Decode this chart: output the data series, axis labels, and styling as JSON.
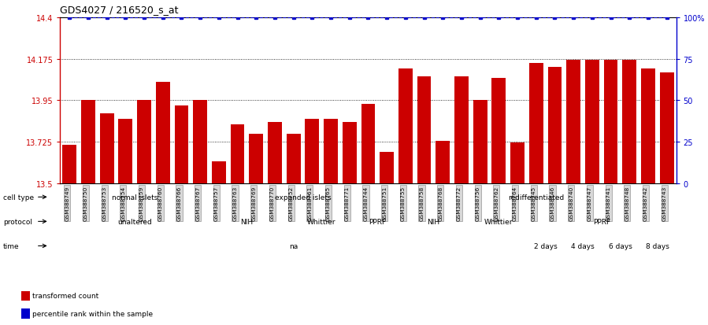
{
  "title": "GDS4027 / 216520_s_at",
  "samples": [
    "GSM388749",
    "GSM388750",
    "GSM388753",
    "GSM388754",
    "GSM388759",
    "GSM388760",
    "GSM388766",
    "GSM388767",
    "GSM388757",
    "GSM388763",
    "GSM388769",
    "GSM388770",
    "GSM388752",
    "GSM388761",
    "GSM388765",
    "GSM388771",
    "GSM388744",
    "GSM388751",
    "GSM388755",
    "GSM388758",
    "GSM388768",
    "GSM388772",
    "GSM388756",
    "GSM388762",
    "GSM388764",
    "GSM388745",
    "GSM388746",
    "GSM388740",
    "GSM388747",
    "GSM388741",
    "GSM388748",
    "GSM388742",
    "GSM388743"
  ],
  "bar_values": [
    13.71,
    13.95,
    13.88,
    13.85,
    13.95,
    14.05,
    13.92,
    13.95,
    13.62,
    13.82,
    13.77,
    13.83,
    13.77,
    13.85,
    13.85,
    13.83,
    13.93,
    13.67,
    14.12,
    14.08,
    13.73,
    14.08,
    13.95,
    14.07,
    13.72,
    14.15,
    14.13,
    14.17,
    14.17,
    14.17,
    14.17,
    14.12,
    14.1
  ],
  "ymin": 13.5,
  "ymax": 14.4,
  "yticks": [
    13.5,
    13.725,
    13.95,
    14.175,
    14.4
  ],
  "ytick_labels": [
    "13.5",
    "13.725",
    "13.95",
    "14.175",
    "14.4"
  ],
  "right_yticks": [
    0,
    25,
    50,
    75,
    100
  ],
  "right_ytick_labels": [
    "0",
    "25",
    "50",
    "75",
    "100%"
  ],
  "bar_color": "#cc0000",
  "percentile_color": "#0000cc",
  "background_color": "#ffffff",
  "cell_type_groups": [
    {
      "label": "normal islets",
      "start": 0,
      "end": 8,
      "color": "#c8f0c8"
    },
    {
      "label": "expanded islets",
      "start": 8,
      "end": 18,
      "color": "#90e890"
    },
    {
      "label": "redifferentiated",
      "start": 18,
      "end": 33,
      "color": "#50cc50"
    }
  ],
  "protocol_groups": [
    {
      "label": "unaltered",
      "start": 0,
      "end": 8,
      "color": "#7070e0"
    },
    {
      "label": "NIH",
      "start": 8,
      "end": 12,
      "color": "#b0b0f0"
    },
    {
      "label": "Whittier",
      "start": 12,
      "end": 16,
      "color": "#b0b0f0"
    },
    {
      "label": "PPRF",
      "start": 16,
      "end": 18,
      "color": "#b0b0f0"
    },
    {
      "label": "NIH",
      "start": 18,
      "end": 22,
      "color": "#b0b0f0"
    },
    {
      "label": "Whittier",
      "start": 22,
      "end": 25,
      "color": "#b0b0f0"
    },
    {
      "label": "PPRF",
      "start": 25,
      "end": 33,
      "color": "#7070e0"
    }
  ],
  "time_groups": [
    {
      "label": "na",
      "start": 0,
      "end": 25,
      "color": "#e87070"
    },
    {
      "label": "2 days",
      "start": 25,
      "end": 27,
      "color": "#f8c0c0"
    },
    {
      "label": "4 days",
      "start": 27,
      "end": 29,
      "color": "#f0a0a0"
    },
    {
      "label": "6 days",
      "start": 29,
      "end": 31,
      "color": "#e88080"
    },
    {
      "label": "8 days",
      "start": 31,
      "end": 33,
      "color": "#d86060"
    }
  ],
  "legend_items": [
    {
      "label": "transformed count",
      "color": "#cc0000"
    },
    {
      "label": "percentile rank within the sample",
      "color": "#0000cc"
    }
  ],
  "label_bg_color": "#d8d8d8",
  "xtick_bg_color": "#d8d8d8"
}
